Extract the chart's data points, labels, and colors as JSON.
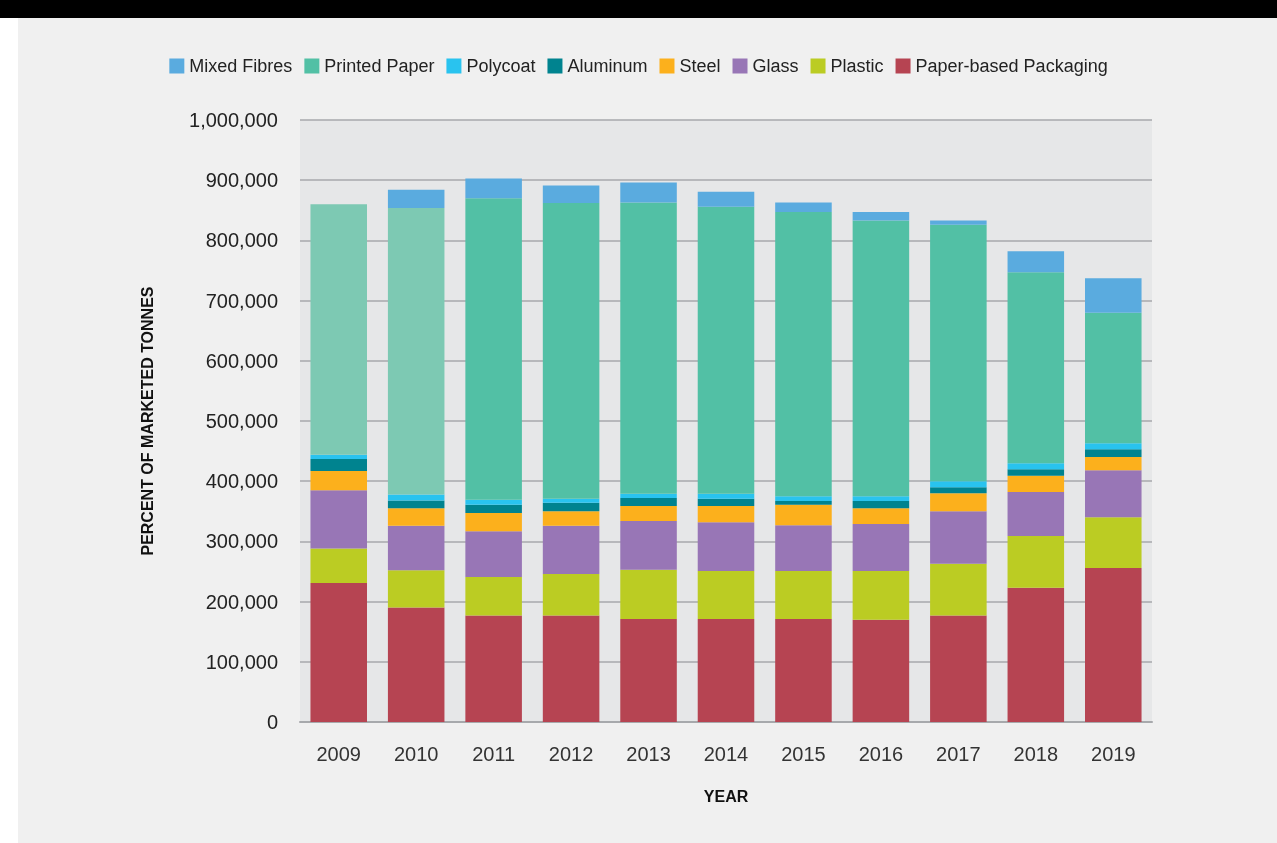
{
  "chart_data": {
    "type": "bar",
    "stacked": true,
    "xlabel": "YEAR",
    "ylabel": "PERCENT OF MARKETED TONNES",
    "categories": [
      "2009",
      "2010",
      "2011",
      "2012",
      "2013",
      "2014",
      "2015",
      "2016",
      "2017",
      "2018",
      "2019"
    ],
    "series": [
      {
        "name": "Paper-based Packaging",
        "color": "#b64452",
        "values": [
          231000,
          190000,
          177000,
          177000,
          171000,
          171000,
          171000,
          170000,
          177000,
          223000,
          256000
        ]
      },
      {
        "name": "Plastic",
        "color": "#bbcc23",
        "values": [
          57000,
          62000,
          64000,
          69000,
          82000,
          80000,
          80000,
          81000,
          86000,
          86000,
          84000
        ]
      },
      {
        "name": "Glass",
        "color": "#9876b6",
        "values": [
          97000,
          74000,
          76000,
          80000,
          81000,
          81000,
          76000,
          78000,
          87000,
          73000,
          78000
        ]
      },
      {
        "name": "Steel",
        "color": "#fcb01c",
        "values": [
          32000,
          29000,
          30000,
          24000,
          25000,
          27000,
          34000,
          26000,
          30000,
          27000,
          22000
        ]
      },
      {
        "name": "Aluminum",
        "color": "#00838f",
        "values": [
          20000,
          13000,
          14000,
          14000,
          13000,
          12000,
          6000,
          12000,
          10000,
          11000,
          13000
        ]
      },
      {
        "name": "Polycoat",
        "color": "#29c3ef",
        "values": [
          7000,
          10000,
          8000,
          7000,
          7000,
          8000,
          8000,
          8000,
          10000,
          10000,
          10000
        ]
      },
      {
        "name": "Printed Paper",
        "color": "#52c0a5",
        "colors": [
          "#7dc9b3",
          "#7dc9b3",
          "#52c0a5",
          "#52c0a5",
          "#52c0a5",
          "#52c0a5",
          "#52c0a5",
          "#52c0a5",
          "#52c0a5",
          "#52c0a5",
          "#52c0a5"
        ],
        "values": [
          416000,
          476000,
          501000,
          491000,
          484000,
          477000,
          472000,
          458000,
          426000,
          317000,
          217000
        ]
      },
      {
        "name": "Mixed Fibres",
        "color": "#5aabdf",
        "values": [
          0,
          30000,
          33000,
          29000,
          33000,
          25000,
          16000,
          14000,
          7000,
          35000,
          57000
        ]
      }
    ],
    "ylim": [
      0,
      1000000
    ],
    "yticks": [
      0,
      {
        "value": 100000,
        "label": "100,000"
      },
      {
        "value": 200000,
        "label": "200,000"
      },
      {
        "value": 300000,
        "label": "300,000"
      },
      {
        "value": 400000,
        "label": "400,000"
      },
      {
        "value": 500000,
        "label": "500,000"
      },
      {
        "value": 600000,
        "label": "600,000"
      },
      {
        "value": 700000,
        "label": "700,000"
      },
      {
        "value": 800000,
        "label": "800,000"
      },
      {
        "value": 900000,
        "label": "900,000"
      },
      {
        "value": 1000000,
        "label": "1,000,000"
      }
    ],
    "grid": "y",
    "legend": "top"
  }
}
